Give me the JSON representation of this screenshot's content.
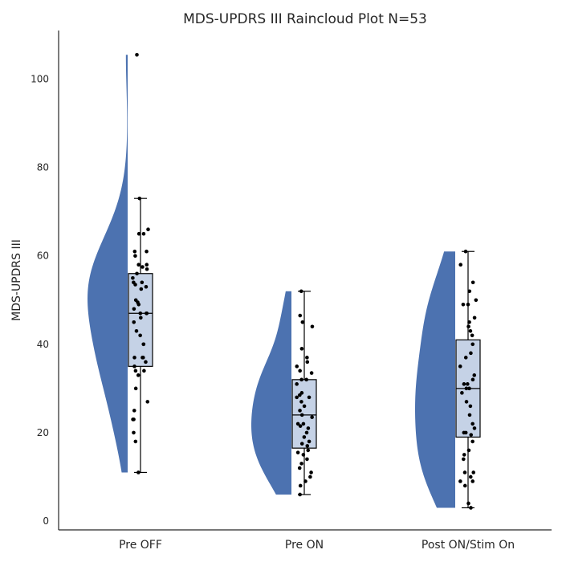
{
  "chart_data": {
    "type": "raincloud",
    "title": "MDS-UPDRS III Raincloud Plot  N=53",
    "xlabel": "",
    "ylabel": "MDS-UPDRS III",
    "ylim": [
      -2,
      111
    ],
    "yticks": [
      0,
      20,
      40,
      60,
      80,
      100
    ],
    "grid": false,
    "categories": [
      "Pre OFF",
      "Pre ON",
      "Post ON/Stim On"
    ],
    "colors": {
      "violin": "#4c72b0",
      "box_fill": "#c5d2e6",
      "box_edge": "#000000",
      "point": "#000000"
    },
    "series": [
      {
        "category": "Pre OFF",
        "box": {
          "min": 11,
          "q1": 35,
          "median": 47,
          "q3": 56,
          "max": 73
        },
        "density_range": [
          11,
          105.5
        ],
        "points": [
          105.5,
          73,
          66,
          65,
          65,
          61,
          61,
          60,
          58,
          58,
          57.5,
          57,
          56,
          55,
          54,
          54,
          53.5,
          53,
          52.5,
          50,
          49.5,
          49,
          48,
          47,
          47,
          47,
          46,
          45,
          43,
          42,
          40,
          40,
          37,
          37,
          37,
          36,
          35,
          34,
          34,
          33,
          30,
          27,
          25,
          23,
          23,
          20,
          18,
          11
        ]
      },
      {
        "category": "Pre ON",
        "box": {
          "min": 6,
          "q1": 16.5,
          "median": 24,
          "q3": 32,
          "max": 52
        },
        "density_range": [
          6,
          52
        ],
        "points": [
          52,
          46.5,
          45,
          44,
          39,
          37,
          36,
          35,
          34,
          33.5,
          32,
          32,
          31,
          29,
          28.5,
          28,
          28,
          27,
          26,
          25,
          24,
          23.5,
          22,
          22,
          21.5,
          21,
          20,
          19,
          18,
          17.5,
          17,
          16,
          15.5,
          15,
          14,
          13,
          12,
          11,
          10,
          9,
          8,
          6
        ]
      },
      {
        "category": "Post ON/Stim On",
        "box": {
          "min": 3,
          "q1": 19,
          "median": 30,
          "q3": 41,
          "max": 61
        },
        "density_range": [
          3,
          61
        ],
        "points": [
          61,
          58,
          54,
          52,
          50,
          49,
          49,
          46,
          45,
          44,
          43,
          42,
          40,
          38,
          37,
          35,
          33,
          32,
          31,
          31,
          30,
          30,
          29,
          27,
          26,
          24,
          22,
          21,
          20,
          20,
          19.5,
          18,
          16,
          15,
          14,
          11,
          11,
          10,
          9,
          9,
          8,
          4,
          3
        ]
      }
    ]
  }
}
